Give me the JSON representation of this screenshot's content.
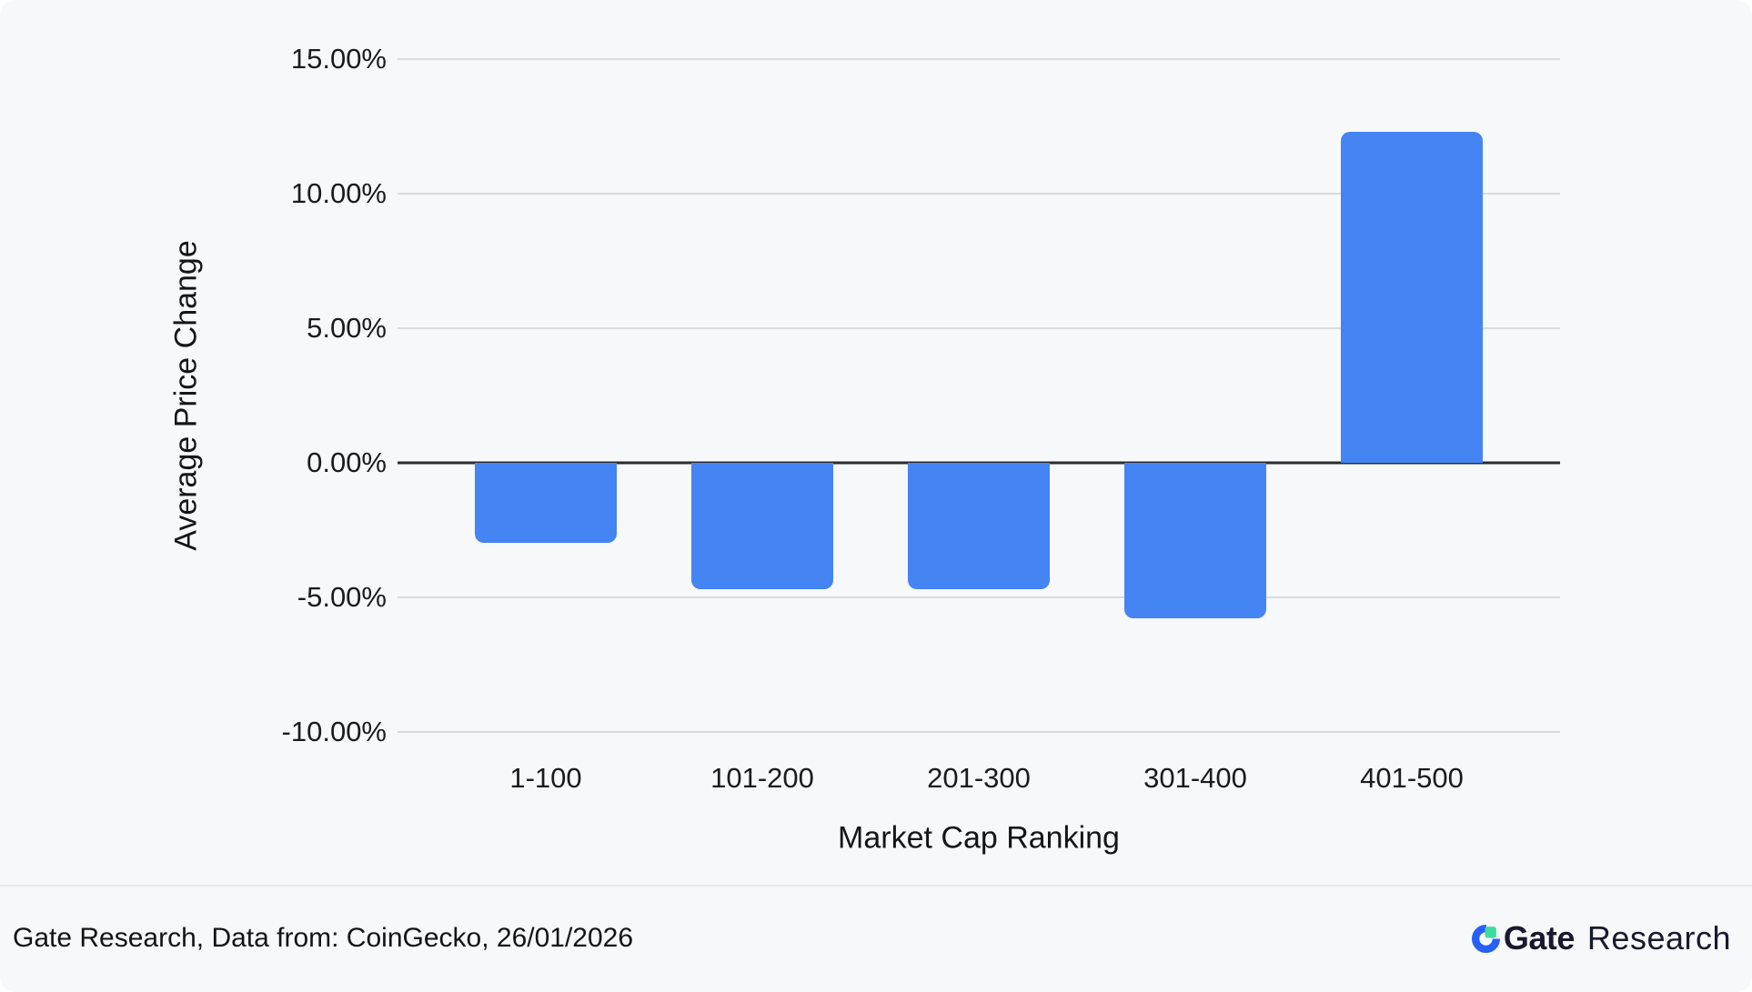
{
  "chart_data": {
    "type": "bar",
    "title": "",
    "categories": [
      "1-100",
      "101-200",
      "201-300",
      "301-400",
      "401-500"
    ],
    "values": [
      -2.97,
      -4.7,
      -4.7,
      -5.78,
      12.3
    ],
    "xlabel": "Market Cap Ranking",
    "ylabel": "Average Price Change",
    "y_ticks": [
      {
        "label": "15.00%",
        "value": 15
      },
      {
        "label": "10.00%",
        "value": 10
      },
      {
        "label": "5.00%",
        "value": 5
      },
      {
        "label": "0.00%",
        "value": 0
      },
      {
        "label": "-5.00%",
        "value": -5
      },
      {
        "label": "-10.00%",
        "value": -10
      }
    ],
    "ylim": [
      -10,
      15
    ],
    "grid": true,
    "legend_position": "none",
    "bar_color": "#4484F3",
    "gridline_color": "#D9DBDE",
    "zero_line_color": "#2B2C2E",
    "background_color": "#F7F8FA"
  },
  "footer": {
    "source_text": "Gate Research, Data from: CoinGecko, 26/01/2026",
    "logo": {
      "mark_icon": "gate-logo-mark",
      "brand_bold": "Gate",
      "brand_light": "Research",
      "mark_blue": "#2760F6",
      "mark_green": "#3EDCA0",
      "wordmark_color": "#171A2E"
    }
  }
}
